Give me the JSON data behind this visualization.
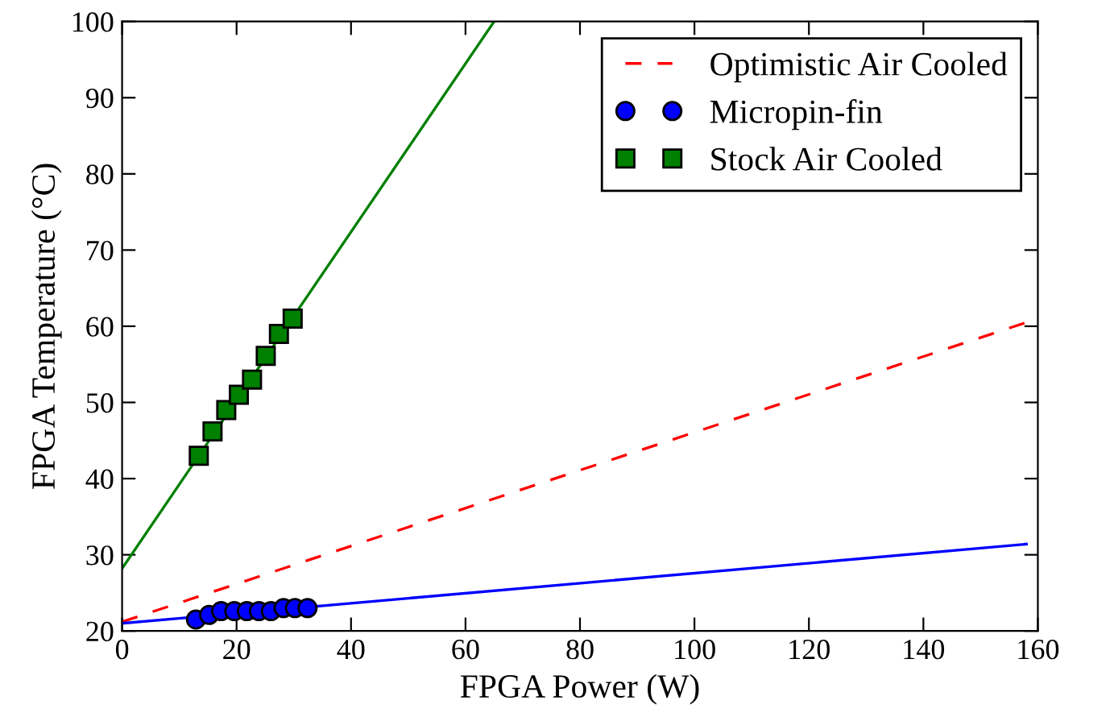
{
  "chart_data": {
    "type": "scatter",
    "xlabel": "FPGA Power (W)",
    "ylabel": "FPGA Temperature (°C)",
    "xlim": [
      0,
      160
    ],
    "ylim": [
      20,
      100
    ],
    "xticks": [
      0,
      20,
      40,
      60,
      80,
      100,
      120,
      140,
      160
    ],
    "yticks": [
      20,
      30,
      40,
      50,
      60,
      70,
      80,
      90,
      100
    ],
    "grid": false,
    "legend": "top right",
    "series": [
      {
        "name": "Optimistic Air Cooled",
        "type": "line",
        "color": "#ff0000",
        "line_style": "dashed",
        "marker": "none",
        "x": [
          0,
          160
        ],
        "values": [
          21.2,
          61
        ]
      },
      {
        "name": "Micropin-fin",
        "color": "#0000ff",
        "marker": "circle",
        "x": [
          12.9,
          15.2,
          17.3,
          19.6,
          21.8,
          23.9,
          26.0,
          28.2,
          30.2,
          32.4
        ],
        "values": [
          21.5,
          22.1,
          22.6,
          22.6,
          22.6,
          22.6,
          22.6,
          23.0,
          23.0,
          23.0
        ]
      },
      {
        "name": "Stock Air Cooled",
        "color": "#008000",
        "marker": "square",
        "x": [
          13.4,
          15.8,
          18.2,
          20.4,
          22.7,
          25.1,
          27.4,
          29.8
        ],
        "values": [
          43.0,
          46.2,
          49.0,
          51.0,
          53.0,
          56.1,
          59.0,
          61.0
        ]
      },
      {
        "type": "line",
        "color": "#0000ff",
        "line_style": "solid",
        "marker": "none",
        "x": [
          0,
          158
        ],
        "values": [
          21,
          31.4
        ]
      },
      {
        "type": "line",
        "color": "#008000",
        "line_style": "solid",
        "marker": "none",
        "x": [
          0,
          65
        ],
        "values": [
          28.2,
          100
        ]
      }
    ]
  }
}
